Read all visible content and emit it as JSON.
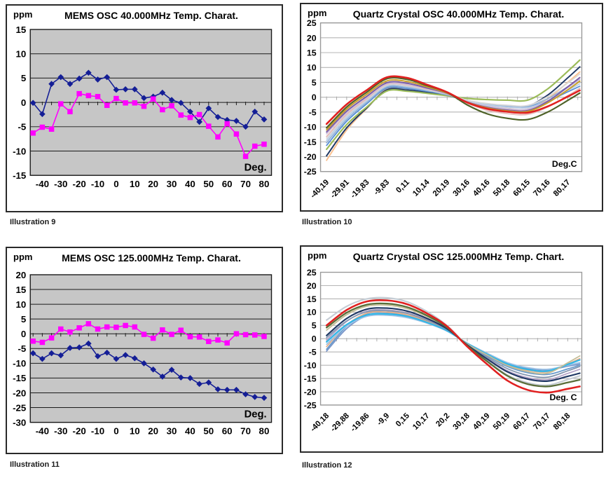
{
  "page_background": "#ffffff",
  "chart_data": [
    {
      "caption": "Illustration 9",
      "title": "MEMS OSC 40.000MHz Temp. Charat.",
      "y_unit": "ppm",
      "x_unit_label": "Deg.",
      "type": "scatter-line",
      "plot_bg": "#c6c6c6",
      "grid_color": "#1a1a1a",
      "border_color": "#1a1a1a",
      "ylim": [
        -15,
        15
      ],
      "yticks": [
        15,
        10,
        5,
        0,
        -5,
        -10,
        -15
      ],
      "xtick_positions": [
        -40,
        -30,
        -20,
        -10,
        0,
        10,
        20,
        30,
        40,
        50,
        60,
        70,
        80
      ],
      "xtick_labels": [
        "-40",
        "-30",
        "-20",
        "-10",
        "0",
        "10",
        "20",
        "30",
        "40",
        "50",
        "60",
        "70",
        "80"
      ],
      "x": [
        -45,
        -40,
        -35,
        -30,
        -25,
        -20,
        -15,
        -10,
        -5,
        0,
        5,
        10,
        15,
        20,
        25,
        30,
        35,
        40,
        45,
        50,
        55,
        60,
        65,
        70,
        75,
        80
      ],
      "series": [
        {
          "color": "#141E96",
          "marker": "diamond",
          "width": 1.6,
          "values": [
            -0.1,
            -2.4,
            3.8,
            5.2,
            3.8,
            4.9,
            6.1,
            4.7,
            5.2,
            2.6,
            2.7,
            2.7,
            0.9,
            1.2,
            2.0,
            0.5,
            -0.1,
            -1.9,
            -4.0,
            -1.2,
            -3.0,
            -3.6,
            -3.8,
            -5.0,
            -1.9,
            -3.5
          ]
        },
        {
          "color": "#FF00FF",
          "marker": "square",
          "width": 1.6,
          "values": [
            -6.3,
            -5.1,
            -5.5,
            -0.3,
            -1.9,
            1.8,
            1.4,
            1.2,
            -0.6,
            0.8,
            -0.1,
            -0.1,
            -0.8,
            0.7,
            -1.5,
            -0.7,
            -2.6,
            -3.1,
            -2.5,
            -4.9,
            -7.1,
            -4.4,
            -6.5,
            -11.1,
            -9.0,
            -8.6
          ]
        }
      ]
    },
    {
      "caption": "Illustration 10",
      "title": "Quartz Crystal OSC 40.000MHz Temp. Charat.",
      "y_unit": "ppm",
      "x_unit_label": "Deg.C",
      "type": "curves",
      "plot_bg": "#ffffff",
      "grid_color": "#ababab",
      "border_color": "#999999",
      "ylim": [
        -25,
        25
      ],
      "yticks": [
        25,
        20,
        15,
        10,
        5,
        0,
        -5,
        -10,
        -15,
        -20,
        -25
      ],
      "xtick_positions": [
        -40,
        -30,
        -20,
        -10,
        0,
        10,
        20,
        30,
        40,
        50,
        60,
        70,
        80
      ],
      "xtick_labels": [
        "-40,19",
        "-29,91",
        "-19,83",
        "-9,83",
        "0,11",
        "10,14",
        "20,19",
        "30,16",
        "40,16",
        "50,18",
        "60,15",
        "70,16",
        "80,17"
      ],
      "x": [
        -40,
        -30,
        -20,
        -10,
        0,
        10,
        20,
        30,
        40,
        50,
        60,
        70,
        80,
        86
      ],
      "series": [
        {
          "color": "#FAC090",
          "width": 2.0,
          "values": [
            -21.2,
            -11.0,
            -3.8,
            2.9,
            2.8,
            1.9,
            0.8,
            -1.4,
            -3.0,
            -3.8,
            -4.0,
            -0.5,
            5.0,
            8.5
          ]
        },
        {
          "color": "#1F3864",
          "width": 2.0,
          "values": [
            -19.7,
            -10.3,
            -3.6,
            2.5,
            2.4,
            1.6,
            0.6,
            -1.1,
            -2.3,
            -2.9,
            -3.0,
            0.7,
            6.5,
            10.2
          ]
        },
        {
          "color": "#9BBB59",
          "width": 2.2,
          "values": [
            -17.5,
            -9.2,
            -3.3,
            2.1,
            2.0,
            1.3,
            0.5,
            -0.4,
            -0.8,
            -1.0,
            -1.0,
            2.8,
            8.7,
            12.5
          ]
        },
        {
          "color": "#558ED5",
          "width": 1.8,
          "values": [
            -16.2,
            -8.1,
            -2.2,
            3.1,
            2.9,
            2.0,
            0.8,
            -1.1,
            -2.4,
            -3.0,
            -3.2,
            -1.3,
            1.8,
            3.7
          ]
        },
        {
          "color": "#95B3D7",
          "width": 1.8,
          "values": [
            -15.3,
            -7.4,
            -1.7,
            3.5,
            3.3,
            2.2,
            0.9,
            -1.1,
            -2.3,
            -2.9,
            -3.0,
            -0.5,
            3.5,
            6.0
          ]
        },
        {
          "color": "#B9CDE5",
          "width": 1.8,
          "values": [
            -14.5,
            -6.7,
            -1.2,
            3.9,
            3.7,
            2.5,
            1.0,
            -1.2,
            -2.6,
            -3.3,
            -3.5,
            -1.3,
            2.3,
            4.5
          ]
        },
        {
          "color": "#D9D9D9",
          "width": 1.8,
          "values": [
            -13.8,
            -6.2,
            -0.8,
            4.1,
            3.9,
            2.6,
            1.1,
            -1.0,
            -2.1,
            -2.7,
            -2.8,
            0.2,
            4.8,
            7.8
          ]
        },
        {
          "color": "#E6B9B8",
          "width": 1.8,
          "values": [
            -13.2,
            -5.8,
            -0.5,
            4.3,
            4.1,
            2.7,
            1.1,
            -2.0,
            -4.4,
            -5.5,
            -5.8,
            -3.3,
            0.5,
            3.0
          ]
        },
        {
          "color": "#CCC0DA",
          "width": 1.8,
          "values": [
            -12.3,
            -5.2,
            -0.1,
            4.5,
            4.3,
            2.9,
            1.2,
            -1.4,
            -3.0,
            -3.8,
            -4.0,
            -1.2,
            3.2,
            6.0
          ]
        },
        {
          "color": "#7C5CA8",
          "width": 2.0,
          "values": [
            -11.7,
            -4.7,
            0.3,
            4.9,
            4.7,
            3.1,
            1.3,
            -1.6,
            -3.4,
            -4.3,
            -4.5,
            -1.4,
            3.5,
            6.6
          ]
        },
        {
          "color": "#C8A028",
          "width": 2.0,
          "values": [
            -11.0,
            -4.0,
            1.0,
            5.5,
            5.3,
            3.5,
            1.4,
            -1.7,
            -3.6,
            -4.6,
            -4.8,
            -1.9,
            2.5,
            5.4
          ]
        },
        {
          "color": "#4F6228",
          "width": 2.2,
          "values": [
            -10.3,
            -3.3,
            1.7,
            6.2,
            6.0,
            3.9,
            1.6,
            -2.6,
            -5.6,
            -7.1,
            -7.5,
            -5.0,
            -1.1,
            1.4
          ]
        },
        {
          "color": "#E02020",
          "width": 2.6,
          "values": [
            -9.0,
            -2.4,
            2.4,
            6.7,
            6.5,
            4.2,
            1.7,
            -1.8,
            -3.9,
            -4.9,
            -5.2,
            -3.1,
            0.2,
            2.3
          ]
        }
      ]
    },
    {
      "caption": "Illustration 11",
      "title": "MEMS OSC 125.000MHz Temp. Charat.",
      "y_unit": "ppm",
      "x_unit_label": "Deg.",
      "type": "scatter-line",
      "plot_bg": "#c6c6c6",
      "grid_color": "#1a1a1a",
      "border_color": "#1a1a1a",
      "ylim": [
        -30,
        20
      ],
      "yticks": [
        20,
        15,
        10,
        5,
        0,
        -5,
        -10,
        -15,
        -20,
        -25,
        -30
      ],
      "xtick_positions": [
        -40,
        -30,
        -20,
        -10,
        0,
        10,
        20,
        30,
        40,
        50,
        60,
        70,
        80
      ],
      "xtick_labels": [
        "-40",
        "-30",
        "-20",
        "-10",
        "0",
        "10",
        "20",
        "30",
        "40",
        "50",
        "60",
        "70",
        "80"
      ],
      "x": [
        -45,
        -40,
        -35,
        -30,
        -25,
        -20,
        -15,
        -10,
        -5,
        0,
        5,
        10,
        15,
        20,
        25,
        30,
        35,
        40,
        45,
        50,
        55,
        60,
        65,
        70,
        75,
        80
      ],
      "series": [
        {
          "color": "#141E96",
          "marker": "diamond",
          "width": 1.6,
          "values": [
            -6.6,
            -8.5,
            -6.6,
            -7.3,
            -4.8,
            -4.6,
            -3.3,
            -7.6,
            -6.4,
            -8.5,
            -7.2,
            -8.3,
            -10.0,
            -12.1,
            -14.5,
            -12.2,
            -14.8,
            -15.0,
            -17.0,
            -16.5,
            -18.8,
            -19.0,
            -19.0,
            -20.5,
            -21.4,
            -21.7
          ]
        },
        {
          "color": "#FF00FF",
          "marker": "square",
          "width": 1.6,
          "values": [
            -2.5,
            -2.9,
            -1.4,
            1.6,
            0.6,
            2.0,
            3.4,
            1.6,
            2.3,
            2.2,
            2.8,
            2.3,
            -0.2,
            -1.5,
            1.3,
            -0.2,
            1.2,
            -1.0,
            -1.1,
            -2.6,
            -2.1,
            -3.1,
            0.0,
            -0.3,
            -0.4,
            -0.9
          ]
        }
      ]
    },
    {
      "caption": "Illustration 12",
      "title": "Quartz Crystal OSC 125.000MHz Temp. Chart.",
      "y_unit": "ppm",
      "x_unit_label": "Deg. C",
      "type": "curves",
      "plot_bg": "#ffffff",
      "grid_color": "#ababab",
      "border_color": "#999999",
      "ylim": [
        -25,
        25
      ],
      "yticks": [
        25,
        20,
        15,
        10,
        5,
        0,
        -5,
        -10,
        -15,
        -20,
        -25
      ],
      "xtick_positions": [
        -40,
        -30,
        -20,
        -10,
        0,
        10,
        20,
        30,
        40,
        50,
        60,
        70,
        80
      ],
      "xtick_labels": [
        "-40,18",
        "-29,88",
        "-19,86",
        "-9,9",
        "0,15",
        "10,17",
        "20,2",
        "30,18",
        "40,19",
        "50,19",
        "60,17",
        "70,17",
        "80,18"
      ],
      "x": [
        -40,
        -30,
        -20,
        -10,
        0,
        10,
        20,
        30,
        40,
        50,
        60,
        70,
        80,
        86
      ],
      "series": [
        {
          "color": "#7A96C9",
          "width": 1.8,
          "values": [
            -4.7,
            3.8,
            8.6,
            9.0,
            8.1,
            5.9,
            2.9,
            -1.8,
            -5.7,
            -9.2,
            -11.2,
            -11.8,
            -10.4,
            -9.5
          ]
        },
        {
          "color": "#6699CC",
          "width": 1.8,
          "values": [
            -4.0,
            4.6,
            9.4,
            9.8,
            8.8,
            6.5,
            3.1,
            -2.0,
            -6.5,
            -10.5,
            -12.8,
            -13.5,
            -11.4,
            -10.0
          ]
        },
        {
          "color": "#E8B088",
          "width": 1.8,
          "values": [
            -3.0,
            5.1,
            9.6,
            10.0,
            9.0,
            6.6,
            3.2,
            -1.9,
            -6.0,
            -9.8,
            -11.9,
            -12.5,
            -9.5,
            -7.5
          ]
        },
        {
          "color": "#9DC3E6",
          "width": 1.8,
          "values": [
            -2.1,
            4.7,
            8.4,
            8.8,
            7.9,
            5.8,
            2.8,
            -1.7,
            -5.5,
            -9.0,
            -10.9,
            -11.5,
            -10.0,
            -9.0
          ]
        },
        {
          "color": "#31B6E7",
          "width": 2.2,
          "values": [
            -1.2,
            5.3,
            8.9,
            9.3,
            8.4,
            6.1,
            3.0,
            -1.8,
            -5.9,
            -9.5,
            -11.6,
            -12.2,
            -9.7,
            -8.0
          ]
        },
        {
          "color": "#B3A2C7",
          "width": 1.8,
          "values": [
            -0.5,
            6.5,
            10.4,
            10.8,
            9.7,
            7.1,
            3.5,
            -2.3,
            -7.4,
            -12.1,
            -14.7,
            -15.5,
            -13.1,
            -11.5
          ]
        },
        {
          "color": "#8496B0",
          "width": 1.8,
          "values": [
            0.4,
            6.7,
            10.1,
            10.5,
            9.5,
            6.9,
            3.4,
            -2.2,
            -7.0,
            -11.3,
            -13.8,
            -14.5,
            -12.1,
            -10.5
          ]
        },
        {
          "color": "#C4BD97",
          "width": 1.8,
          "values": [
            3.2,
            9.0,
            12.2,
            12.6,
            11.3,
            8.3,
            4.0,
            -2.0,
            -6.2,
            -10.1,
            -12.4,
            -13.0,
            -9.1,
            -6.5
          ]
        },
        {
          "color": "#C6CDD5",
          "width": 2.2,
          "values": [
            7.0,
            12.2,
            15.0,
            15.4,
            13.9,
            10.2,
            4.9,
            -2.6,
            -8.4,
            -13.7,
            -16.6,
            -17.5,
            -15.4,
            -14.0
          ]
        },
        {
          "color": "#1F3864",
          "width": 2.2,
          "values": [
            1.2,
            7.6,
            11.1,
            11.5,
            10.4,
            7.6,
            3.7,
            -2.4,
            -7.7,
            -12.5,
            -15.2,
            -16.0,
            -14.2,
            -13.0
          ]
        },
        {
          "color": "#5A6E3A",
          "width": 2.4,
          "values": [
            4.2,
            9.8,
            12.8,
            13.2,
            11.9,
            8.7,
            4.2,
            -2.7,
            -8.6,
            -14.0,
            -17.1,
            -18.0,
            -16.5,
            -15.5
          ]
        },
        {
          "color": "#E02020",
          "width": 2.6,
          "values": [
            5.0,
            10.8,
            14.0,
            14.4,
            13.0,
            9.5,
            4.6,
            -3.0,
            -9.7,
            -15.8,
            -19.3,
            -20.3,
            -18.9,
            -18.0
          ]
        }
      ]
    }
  ]
}
